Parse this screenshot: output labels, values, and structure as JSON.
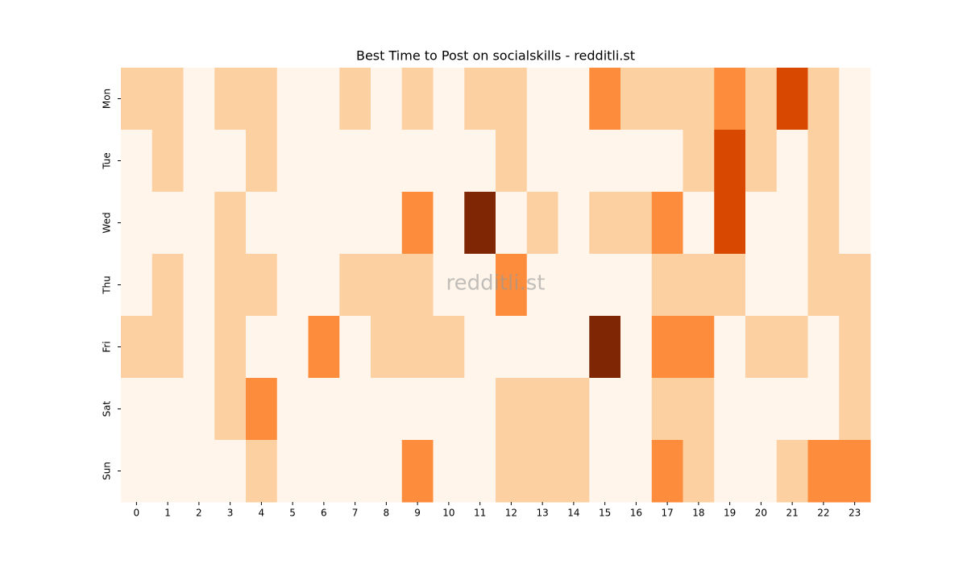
{
  "chart_data": {
    "type": "heatmap",
    "title": "Best Time to Post on socialskills - redditli.st",
    "watermark": "redditli.st",
    "x": [
      0,
      1,
      2,
      3,
      4,
      5,
      6,
      7,
      8,
      9,
      10,
      11,
      12,
      13,
      14,
      15,
      16,
      17,
      18,
      19,
      20,
      21,
      22,
      23
    ],
    "y": [
      "Mon",
      "Tue",
      "Wed",
      "Thu",
      "Fri",
      "Sat",
      "Sun"
    ],
    "values": [
      [
        1,
        1,
        0,
        1,
        1,
        0,
        0,
        1,
        0,
        1,
        0,
        1,
        1,
        0,
        0,
        2,
        1,
        1,
        1,
        2,
        1,
        3,
        1,
        0
      ],
      [
        0,
        1,
        0,
        0,
        1,
        0,
        0,
        0,
        0,
        0,
        0,
        0,
        1,
        0,
        0,
        0,
        0,
        0,
        1,
        3,
        1,
        0,
        1,
        0
      ],
      [
        0,
        0,
        0,
        1,
        0,
        0,
        0,
        0,
        0,
        2,
        0,
        4,
        0,
        1,
        0,
        1,
        1,
        2,
        0,
        3,
        0,
        0,
        1,
        0
      ],
      [
        0,
        1,
        0,
        1,
        1,
        0,
        0,
        1,
        1,
        1,
        0,
        0,
        2,
        0,
        0,
        0,
        0,
        1,
        1,
        1,
        0,
        0,
        1,
        1
      ],
      [
        1,
        1,
        0,
        1,
        0,
        0,
        2,
        0,
        1,
        1,
        1,
        0,
        0,
        0,
        0,
        4,
        0,
        2,
        2,
        0,
        1,
        1,
        0,
        1
      ],
      [
        0,
        0,
        0,
        1,
        2,
        0,
        0,
        0,
        0,
        0,
        0,
        0,
        1,
        1,
        1,
        0,
        0,
        1,
        1,
        0,
        0,
        0,
        0,
        1
      ],
      [
        0,
        0,
        0,
        0,
        1,
        0,
        0,
        0,
        0,
        2,
        0,
        0,
        1,
        1,
        1,
        0,
        0,
        2,
        1,
        0,
        0,
        1,
        2,
        2
      ]
    ],
    "vlim": [
      0,
      4
    ],
    "colors": [
      "#fff5eb",
      "#fdd0a2",
      "#fd8d3c",
      "#d94801",
      "#7f2704"
    ]
  }
}
